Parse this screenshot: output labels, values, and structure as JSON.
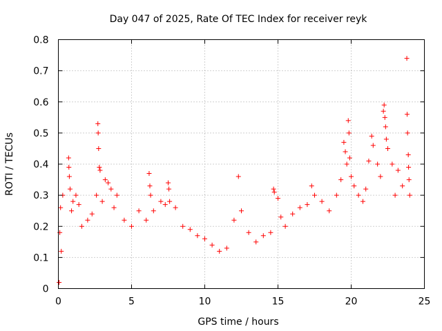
{
  "chart_data": {
    "type": "scatter",
    "title": "Day 047 of 2025, Rate Of TEC Index for receiver reyk",
    "xlabel": "GPS time / hours",
    "ylabel": "ROTI / TECUs",
    "xlim": [
      0,
      25
    ],
    "ylim": [
      0,
      0.8
    ],
    "x_ticks": [
      0,
      5,
      10,
      15,
      20,
      25
    ],
    "x_tick_labels": [
      "0",
      "5",
      "10",
      "15",
      "20",
      "25"
    ],
    "y_ticks": [
      0,
      0.1,
      0.2,
      0.3,
      0.4,
      0.5,
      0.6,
      0.7,
      0.8
    ],
    "y_tick_labels": [
      "0",
      "0.1",
      "0.2",
      "0.3",
      "0.4",
      "0.5",
      "0.6",
      "0.7",
      "0.8"
    ],
    "grid": true,
    "marker": "+",
    "color": "#ff0000",
    "series": [
      {
        "points": [
          [
            0.05,
            0.02
          ],
          [
            0.1,
            0.18
          ],
          [
            0.15,
            0.26
          ],
          [
            0.2,
            0.12
          ],
          [
            0.3,
            0.3
          ],
          [
            0.7,
            0.42
          ],
          [
            0.72,
            0.39
          ],
          [
            0.75,
            0.36
          ],
          [
            0.8,
            0.32
          ],
          [
            0.9,
            0.25
          ],
          [
            1.0,
            0.28
          ],
          [
            1.2,
            0.3
          ],
          [
            1.4,
            0.27
          ],
          [
            1.6,
            0.2
          ],
          [
            2.0,
            0.22
          ],
          [
            2.3,
            0.24
          ],
          [
            2.6,
            0.3
          ],
          [
            2.7,
            0.53
          ],
          [
            2.72,
            0.5
          ],
          [
            2.75,
            0.45
          ],
          [
            2.8,
            0.39
          ],
          [
            2.85,
            0.38
          ],
          [
            3.0,
            0.28
          ],
          [
            3.2,
            0.35
          ],
          [
            3.4,
            0.34
          ],
          [
            3.6,
            0.32
          ],
          [
            3.8,
            0.26
          ],
          [
            4.0,
            0.3
          ],
          [
            4.5,
            0.22
          ],
          [
            5.0,
            0.2
          ],
          [
            5.5,
            0.25
          ],
          [
            6.0,
            0.22
          ],
          [
            6.2,
            0.37
          ],
          [
            6.25,
            0.33
          ],
          [
            6.3,
            0.3
          ],
          [
            6.5,
            0.25
          ],
          [
            7.0,
            0.28
          ],
          [
            7.3,
            0.27
          ],
          [
            7.5,
            0.34
          ],
          [
            7.55,
            0.32
          ],
          [
            7.6,
            0.28
          ],
          [
            8.0,
            0.26
          ],
          [
            8.5,
            0.2
          ],
          [
            9.0,
            0.19
          ],
          [
            9.5,
            0.17
          ],
          [
            10.0,
            0.16
          ],
          [
            10.5,
            0.14
          ],
          [
            11.0,
            0.12
          ],
          [
            11.5,
            0.13
          ],
          [
            12.0,
            0.22
          ],
          [
            12.3,
            0.36
          ],
          [
            12.5,
            0.25
          ],
          [
            13.0,
            0.18
          ],
          [
            13.5,
            0.15
          ],
          [
            14.0,
            0.17
          ],
          [
            14.5,
            0.18
          ],
          [
            14.7,
            0.32
          ],
          [
            14.75,
            0.31
          ],
          [
            15.0,
            0.29
          ],
          [
            15.2,
            0.23
          ],
          [
            15.5,
            0.2
          ],
          [
            16.0,
            0.24
          ],
          [
            16.5,
            0.26
          ],
          [
            17.0,
            0.27
          ],
          [
            17.3,
            0.33
          ],
          [
            17.5,
            0.3
          ],
          [
            18.0,
            0.28
          ],
          [
            18.5,
            0.25
          ],
          [
            19.0,
            0.3
          ],
          [
            19.3,
            0.35
          ],
          [
            19.5,
            0.47
          ],
          [
            19.6,
            0.44
          ],
          [
            19.7,
            0.4
          ],
          [
            19.8,
            0.54
          ],
          [
            19.85,
            0.5
          ],
          [
            19.9,
            0.42
          ],
          [
            20.0,
            0.36
          ],
          [
            20.2,
            0.33
          ],
          [
            20.5,
            0.3
          ],
          [
            20.8,
            0.28
          ],
          [
            21.0,
            0.32
          ],
          [
            21.2,
            0.41
          ],
          [
            21.4,
            0.49
          ],
          [
            21.5,
            0.46
          ],
          [
            21.8,
            0.4
          ],
          [
            22.0,
            0.36
          ],
          [
            22.2,
            0.57
          ],
          [
            22.25,
            0.59
          ],
          [
            22.3,
            0.55
          ],
          [
            22.35,
            0.52
          ],
          [
            22.4,
            0.48
          ],
          [
            22.5,
            0.45
          ],
          [
            22.8,
            0.4
          ],
          [
            23.0,
            0.3
          ],
          [
            23.2,
            0.38
          ],
          [
            23.5,
            0.33
          ],
          [
            23.8,
            0.74
          ],
          [
            23.82,
            0.56
          ],
          [
            23.85,
            0.5
          ],
          [
            23.9,
            0.43
          ],
          [
            23.92,
            0.39
          ],
          [
            23.95,
            0.35
          ],
          [
            24.0,
            0.3
          ]
        ]
      }
    ]
  }
}
